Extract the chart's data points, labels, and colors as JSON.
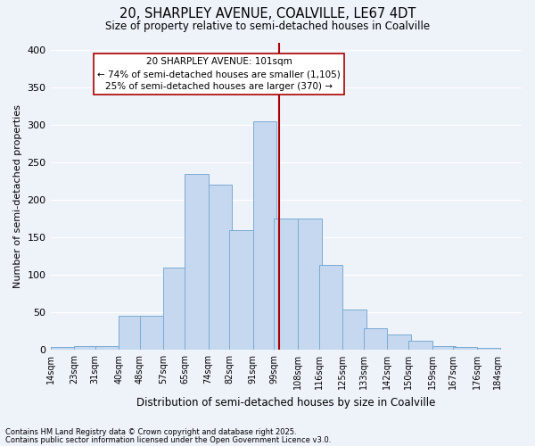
{
  "title1": "20, SHARPLEY AVENUE, COALVILLE, LE67 4DT",
  "title2": "Size of property relative to semi-detached houses in Coalville",
  "xlabel": "Distribution of semi-detached houses by size in Coalville",
  "ylabel": "Number of semi-detached properties",
  "annotation_title": "20 SHARPLEY AVENUE: 101sqm",
  "annotation_line1": "← 74% of semi-detached houses are smaller (1,105)",
  "annotation_line2": "25% of semi-detached houses are larger (370) →",
  "footnote1": "Contains HM Land Registry data © Crown copyright and database right 2025.",
  "footnote2": "Contains public sector information licensed under the Open Government Licence v3.0.",
  "bin_labels": [
    "14sqm",
    "23sqm",
    "31sqm",
    "40sqm",
    "48sqm",
    "57sqm",
    "65sqm",
    "74sqm",
    "82sqm",
    "91sqm",
    "99sqm",
    "108sqm",
    "116sqm",
    "125sqm",
    "133sqm",
    "142sqm",
    "150sqm",
    "159sqm",
    "167sqm",
    "176sqm",
    "184sqm"
  ],
  "bin_starts": [
    14,
    23,
    31,
    40,
    48,
    57,
    65,
    74,
    82,
    91,
    99,
    108,
    116,
    125,
    133,
    142,
    150,
    159,
    167,
    176
  ],
  "bar_heights": [
    3,
    5,
    5,
    45,
    45,
    110,
    235,
    220,
    160,
    305,
    175,
    175,
    113,
    53,
    28,
    20,
    12,
    5,
    4,
    2
  ],
  "bar_color": "#c5d8f0",
  "bar_edge_color": "#7baad4",
  "property_size": 101,
  "vline_color": "#aa0000",
  "ylim": [
    0,
    410
  ],
  "yticks": [
    0,
    50,
    100,
    150,
    200,
    250,
    300,
    350,
    400
  ],
  "background_color": "#eef2f9",
  "plot_bg_color": "#eef2f9",
  "grid_color": "#ffffff",
  "annotation_box_edge": "#aa0000"
}
